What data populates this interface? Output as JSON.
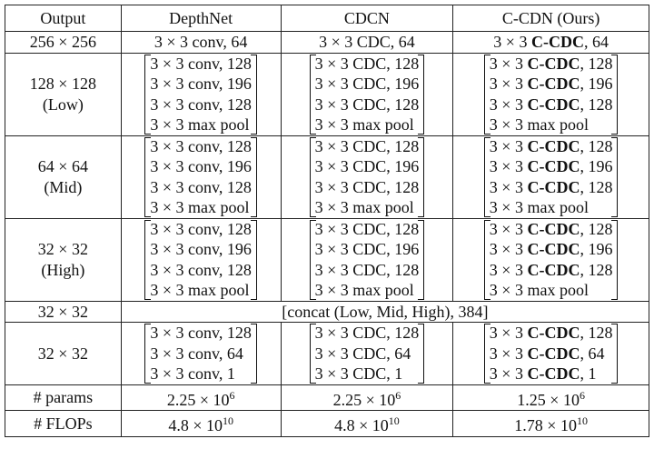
{
  "table": {
    "header": [
      "Output",
      "DepthNet",
      "CDCN",
      "C-CDN (Ours)"
    ],
    "rows": [
      {
        "output": [
          "256 × 256"
        ],
        "bracket": false,
        "cells": [
          [
            [
              "3 × 3 conv, 64"
            ]
          ],
          [
            [
              "3 × 3 CDC, 64"
            ]
          ],
          [
            [
              "3 × 3 ",
              {
                "text": "C-CDC",
                "bold": true
              },
              ", 64"
            ]
          ]
        ]
      },
      {
        "output": [
          "128 × 128",
          "(Low)"
        ],
        "bracket": true,
        "cells": [
          [
            [
              "3 × 3 conv, 128"
            ],
            [
              "3 × 3 conv, 196"
            ],
            [
              "3 × 3 conv, 128"
            ],
            [
              "3 × 3 max pool"
            ]
          ],
          [
            [
              "3 × 3 CDC, 128"
            ],
            [
              "3 × 3 CDC, 196"
            ],
            [
              "3 × 3 CDC, 128"
            ],
            [
              "3 × 3 max pool"
            ]
          ],
          [
            [
              "3 × 3 ",
              {
                "text": "C-CDC",
                "bold": true
              },
              ", 128"
            ],
            [
              "3 × 3 ",
              {
                "text": "C-CDC",
                "bold": true
              },
              ", 196"
            ],
            [
              "3 × 3 ",
              {
                "text": "C-CDC",
                "bold": true
              },
              ", 128"
            ],
            [
              "3 × 3 max pool"
            ]
          ]
        ]
      },
      {
        "output": [
          "64 × 64",
          "(Mid)"
        ],
        "bracket": true,
        "cells": [
          [
            [
              "3 × 3 conv, 128"
            ],
            [
              "3 × 3 conv, 196"
            ],
            [
              "3 × 3 conv, 128"
            ],
            [
              "3 × 3 max pool"
            ]
          ],
          [
            [
              "3 × 3 CDC, 128"
            ],
            [
              "3 × 3 CDC, 196"
            ],
            [
              "3 × 3 CDC, 128"
            ],
            [
              "3 × 3 max pool"
            ]
          ],
          [
            [
              "3 × 3 ",
              {
                "text": "C-CDC",
                "bold": true
              },
              ", 128"
            ],
            [
              "3 × 3 ",
              {
                "text": "C-CDC",
                "bold": true
              },
              ", 196"
            ],
            [
              "3 × 3 ",
              {
                "text": "C-CDC",
                "bold": true
              },
              ", 128"
            ],
            [
              "3 × 3 max pool"
            ]
          ]
        ]
      },
      {
        "output": [
          "32 × 32",
          "(High)"
        ],
        "bracket": true,
        "cells": [
          [
            [
              "3 × 3 conv, 128"
            ],
            [
              "3 × 3 conv, 196"
            ],
            [
              "3 × 3 conv, 128"
            ],
            [
              "3 × 3 max pool"
            ]
          ],
          [
            [
              "3 × 3 CDC, 128"
            ],
            [
              "3 × 3 CDC, 196"
            ],
            [
              "3 × 3 CDC, 128"
            ],
            [
              "3 × 3 max pool"
            ]
          ],
          [
            [
              "3 × 3 ",
              {
                "text": "C-CDC",
                "bold": true
              },
              ", 128"
            ],
            [
              "3 × 3 ",
              {
                "text": "C-CDC",
                "bold": true
              },
              ", 196"
            ],
            [
              "3 × 3 ",
              {
                "text": "C-CDC",
                "bold": true
              },
              ", 128"
            ],
            [
              "3 × 3 max pool"
            ]
          ]
        ]
      },
      {
        "output": [
          "32 × 32"
        ],
        "span": "[concat (Low, Mid, High), 384]"
      },
      {
        "output": [
          "32 × 32"
        ],
        "bracket": true,
        "cells": [
          [
            [
              "3 × 3 conv, 128"
            ],
            [
              "3 × 3 conv, 64"
            ],
            [
              "3 × 3 conv, 1"
            ]
          ],
          [
            [
              "3 × 3 CDC, 128"
            ],
            [
              "3 × 3 CDC, 64"
            ],
            [
              "3 × 3 CDC, 1"
            ]
          ],
          [
            [
              "3 × 3 ",
              {
                "text": "C-CDC",
                "bold": true
              },
              ", 128"
            ],
            [
              "3 × 3 ",
              {
                "text": "C-CDC",
                "bold": true
              },
              ", 64"
            ],
            [
              "3 × 3 ",
              {
                "text": "C-CDC",
                "bold": true
              },
              ", 1"
            ]
          ]
        ]
      },
      {
        "output": [
          "# params"
        ],
        "cells": [
          {
            "base": "2.25 × 10",
            "exp": "6"
          },
          {
            "base": "2.25 × 10",
            "exp": "6"
          },
          {
            "base": "1.25 × 10",
            "exp": "6"
          }
        ]
      },
      {
        "output": [
          "# FLOPs"
        ],
        "cells": [
          {
            "base": "4.8 × 10",
            "exp": "10"
          },
          {
            "base": "4.8 × 10",
            "exp": "10"
          },
          {
            "base": "1.78 × 10",
            "exp": "10"
          }
        ]
      }
    ]
  }
}
